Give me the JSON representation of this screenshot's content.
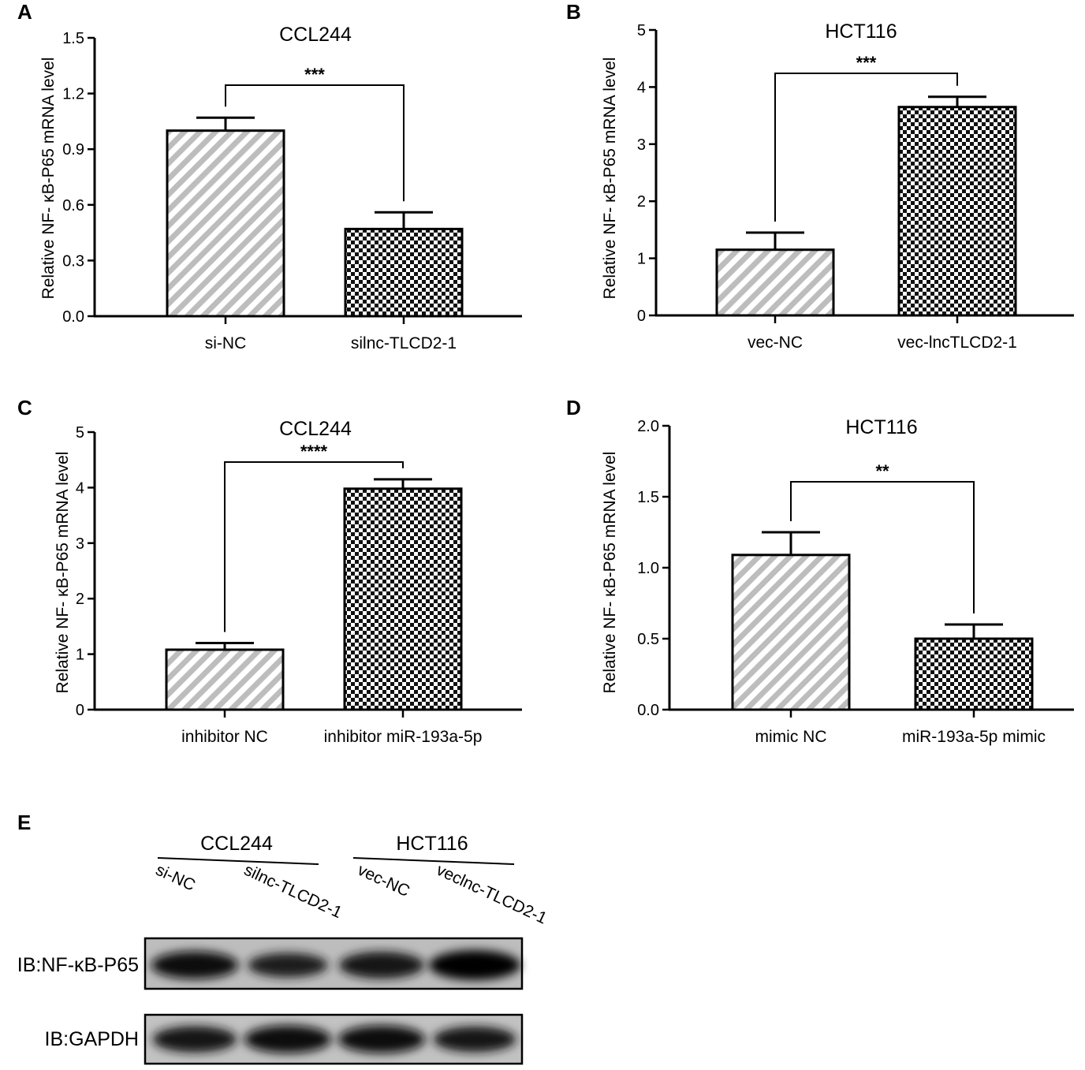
{
  "chart_data": [
    {
      "panel": "A",
      "type": "bar",
      "title": "CCL244",
      "ylabel": "Relative NF- κB-P65 mRNA level",
      "xlabel": "",
      "categories": [
        "si-NC",
        "silnc-TLCD2-1"
      ],
      "values": [
        1.0,
        0.47
      ],
      "errors": [
        0.07,
        0.09
      ],
      "patterns": [
        "stripe",
        "check"
      ],
      "yticks": [
        "0.0",
        "0.3",
        "0.6",
        "0.9",
        "1.2",
        "1.5"
      ],
      "ylim": [
        0,
        1.5
      ],
      "significance": "***",
      "grid": false
    },
    {
      "panel": "B",
      "type": "bar",
      "title": "HCT116",
      "ylabel": "Relative NF- κB-P65 mRNA level",
      "xlabel": "",
      "categories": [
        "vec-NC",
        "vec-lncTLCD2-1"
      ],
      "values": [
        1.15,
        3.65
      ],
      "errors": [
        0.3,
        0.18
      ],
      "patterns": [
        "stripe",
        "check"
      ],
      "yticks": [
        "0",
        "1",
        "2",
        "3",
        "4",
        "5"
      ],
      "ylim": [
        0,
        5
      ],
      "significance": "***",
      "grid": false
    },
    {
      "panel": "C",
      "type": "bar",
      "title": "CCL244",
      "ylabel": "Relative NF- κB-P65 mRNA level",
      "xlabel": "",
      "categories": [
        "inhibitor NC",
        "inhibitor miR-193a-5p"
      ],
      "values": [
        1.08,
        3.98
      ],
      "errors": [
        0.12,
        0.17
      ],
      "patterns": [
        "stripe",
        "check"
      ],
      "yticks": [
        "0",
        "1",
        "2",
        "3",
        "4",
        "5"
      ],
      "ylim": [
        0,
        5
      ],
      "significance": "****",
      "grid": false
    },
    {
      "panel": "D",
      "type": "bar",
      "title": "HCT116",
      "ylabel": "Relative NF- κB-P65 mRNA level",
      "xlabel": "",
      "categories": [
        "mimic NC",
        "miR-193a-5p mimic"
      ],
      "values": [
        1.09,
        0.5
      ],
      "errors": [
        0.16,
        0.1
      ],
      "patterns": [
        "stripe",
        "check"
      ],
      "yticks": [
        "0.0",
        "0.5",
        "1.0",
        "1.5",
        "2.0"
      ],
      "ylim": [
        0,
        2.0
      ],
      "significance": "**",
      "grid": false
    }
  ],
  "western_blot": {
    "panel": "E",
    "groups": [
      "CCL244",
      "HCT116"
    ],
    "lanes": [
      "si-NC",
      "silnc-TLCD2-1",
      "vec-NC",
      "veclnc-TLCD2-1"
    ],
    "rows": [
      {
        "label": "IB:NF-κB-P65",
        "intensities": [
          0.85,
          0.6,
          0.78,
          1.0
        ]
      },
      {
        "label": "IB:GAPDH",
        "intensities": [
          0.75,
          0.85,
          0.85,
          0.7
        ]
      }
    ]
  }
}
